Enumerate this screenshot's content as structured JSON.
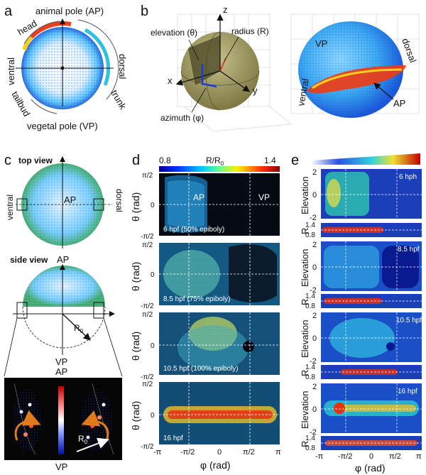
{
  "panels": {
    "a": {
      "letter": "a",
      "top": "animal pole (AP)",
      "bottom": "vegetal pole (VP)",
      "left": "ventral",
      "right": "dorsal",
      "arc_head": "head",
      "arc_trunk": "trunk",
      "arc_tailbud": "tailbud"
    },
    "b": {
      "letter": "b",
      "z": "z",
      "x": "x",
      "y": "y",
      "elevation": "elevation (θ)",
      "radius": "radius (R)",
      "azimuth": "azimuth (φ)",
      "vp": "VP",
      "dorsal": "dorsal",
      "ventral": "ventral",
      "ap": "AP"
    },
    "c": {
      "letter": "c",
      "top_view": "top view",
      "side_view": "side view",
      "ventral": "ventral",
      "dorsal": "dorsal",
      "ap": "AP",
      "ap2": "AP",
      "vp": "VP",
      "r0": "R",
      "r0_sub": "0",
      "inset_ap": "AP",
      "inset_vp": "VP",
      "inset_r0": "R",
      "inset_r0_sub": "0"
    },
    "d": {
      "letter": "d",
      "cb_min": "0.8",
      "cb_max": "1.4",
      "cb_title": "R/R",
      "cb_title_sub": "0",
      "ylabel": "θ (rad)",
      "xlabel": "φ (rad)",
      "y_top": "π/2",
      "y_mid": "0",
      "y_bot": "-π/2",
      "x_ticks": [
        "-π",
        "-π/2",
        "0",
        "π/2",
        "π"
      ],
      "ap": "AP",
      "vp": "VP",
      "stages": [
        "6 hpf (50% epiboly)",
        "8.5 hpf (75% epiboly)",
        "10.5 hpf (100% epiboly)",
        "16 hpf"
      ]
    },
    "e": {
      "letter": "e",
      "elev": "Elevation",
      "r": "R",
      "y_ticks": [
        "2",
        "0",
        "-2"
      ],
      "r_ticks": [
        "1.4",
        "0.8"
      ],
      "xlabel": "φ (rad)",
      "x_ticks": [
        "-π",
        "-π/2",
        "0",
        "π/2",
        "π"
      ],
      "stages": [
        "6 hph",
        "8.5 hpf",
        "10.5 hpf",
        "16 hpf"
      ]
    }
  },
  "colors": {
    "jet_blue": "#1a3bd8",
    "jet_dark": "#0a0a8a",
    "jet_red": "#d81a1a",
    "orange_arrow": "#e07a1a",
    "sphere": "#8f8a52"
  }
}
